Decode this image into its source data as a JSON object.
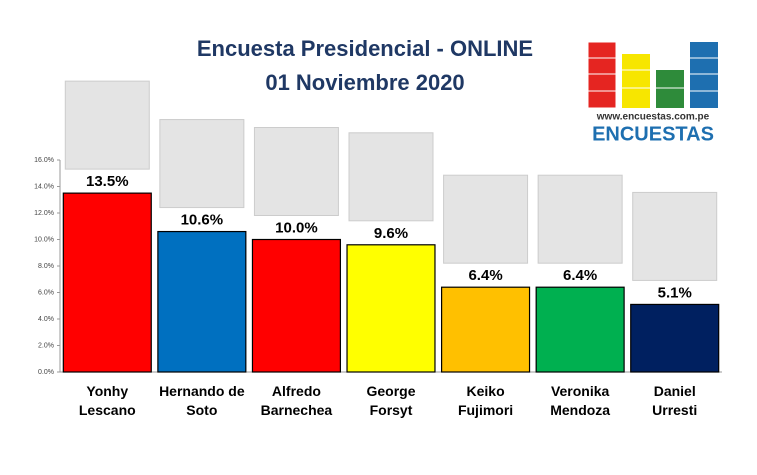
{
  "chart_data": {
    "type": "bar",
    "title": "Encuesta Presidencial - ONLINE",
    "subtitle": "01 Noviembre 2020",
    "logo_url": "www.encuestas.com.pe",
    "logo_text": "ENCUESTAS",
    "categories": [
      "Yonhy Lescano",
      "Hernando de Soto",
      "Alfredo Barnechea",
      "George Forsyt",
      "Keiko Fujimori",
      "Veronika Mendoza",
      "Daniel Urresti"
    ],
    "values": [
      13.5,
      10.6,
      10.0,
      9.6,
      6.4,
      6.4,
      5.1
    ],
    "value_labels": [
      "13.5%",
      "10.6%",
      "10.0%",
      "9.6%",
      "6.4%",
      "6.4%",
      "5.1%"
    ],
    "colors": [
      "#ff0000",
      "#0070c0",
      "#ff0000",
      "#ffff00",
      "#ffc000",
      "#00b050",
      "#002060"
    ],
    "ylim": [
      0,
      16
    ],
    "yticks": [
      {
        "value": 0,
        "label": "0.0%"
      },
      {
        "value": 2,
        "label": "2.0%"
      },
      {
        "value": 4,
        "label": "4.0%"
      },
      {
        "value": 6,
        "label": "6.0%"
      },
      {
        "value": 8,
        "label": "8.0%"
      },
      {
        "value": 10,
        "label": "10.0%"
      },
      {
        "value": 12,
        "label": "12.0%"
      },
      {
        "value": 14,
        "label": "14.0%"
      },
      {
        "value": 16,
        "label": "16.0%"
      }
    ],
    "grid": false
  }
}
